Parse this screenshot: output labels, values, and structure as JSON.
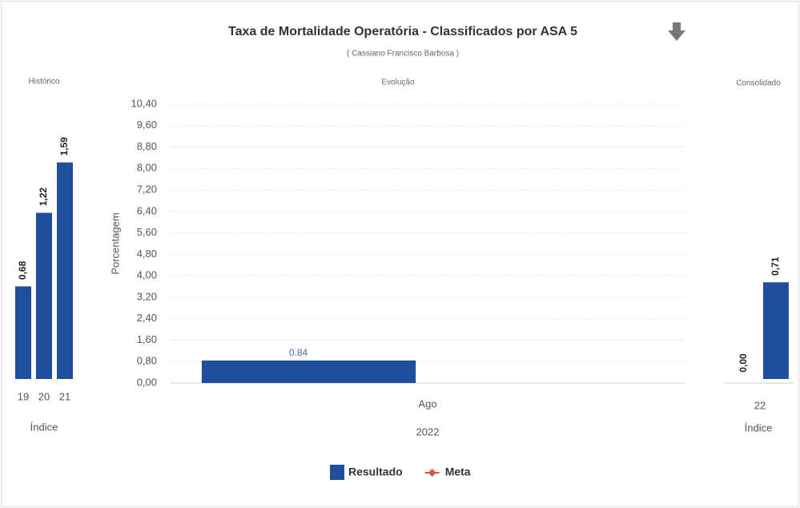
{
  "title": "Taxa de Mortalidade Operatória - Classificados por ASA 5",
  "subtitle": "( Cassiano Francisco Barbosa )",
  "chart_data": [
    {
      "type": "bar",
      "title": "Histórico",
      "categories": [
        "19",
        "20",
        "21"
      ],
      "values": [
        0.68,
        1.22,
        1.59
      ],
      "value_labels": [
        "0,68",
        "1,22",
        "1,59"
      ],
      "xlabel": "Índice",
      "color": "#1f4e9c",
      "ylim": [
        0,
        2
      ]
    },
    {
      "type": "bar",
      "title": "Evolução",
      "categories": [
        "Ago"
      ],
      "xgroup": "2022",
      "ylabel": "Porcentagem",
      "series": [
        {
          "name": "Resultado",
          "color": "#1f4e9c",
          "values": [
            0.84
          ],
          "value_labels": [
            "0.84"
          ]
        },
        {
          "name": "Meta",
          "color": "#d9534f",
          "values": [
            null
          ]
        }
      ],
      "ylim": [
        0,
        10.4
      ],
      "yticks": [
        {
          "value": 0,
          "label": "0,00"
        },
        {
          "value": 0.8,
          "label": "0,80"
        },
        {
          "value": 1.6,
          "label": "1,60"
        },
        {
          "value": 2.4,
          "label": "2,40"
        },
        {
          "value": 3.2,
          "label": "3,20"
        },
        {
          "value": 4,
          "label": "4,00"
        },
        {
          "value": 4.8,
          "label": "4,80"
        },
        {
          "value": 5.6,
          "label": "5,60"
        },
        {
          "value": 6.4,
          "label": "6,40"
        },
        {
          "value": 7.2,
          "label": "7,20"
        },
        {
          "value": 8,
          "label": "8,00"
        },
        {
          "value": 8.8,
          "label": "8,80"
        },
        {
          "value": 9.6,
          "label": "9,60"
        },
        {
          "value": 10.4,
          "label": "10,40"
        }
      ],
      "grid": true,
      "legend": "bottom"
    },
    {
      "type": "bar",
      "title": "Consolidado",
      "categories": [
        "22"
      ],
      "series": [
        {
          "color": "#1f4e9c",
          "values": [
            0
          ],
          "value_labels": [
            "0,00"
          ]
        },
        {
          "color": "#1f4e9c",
          "values": [
            0.71
          ],
          "value_labels": [
            "0,71"
          ]
        }
      ],
      "xlabel": "Índice",
      "ylim": [
        0,
        2
      ]
    }
  ]
}
